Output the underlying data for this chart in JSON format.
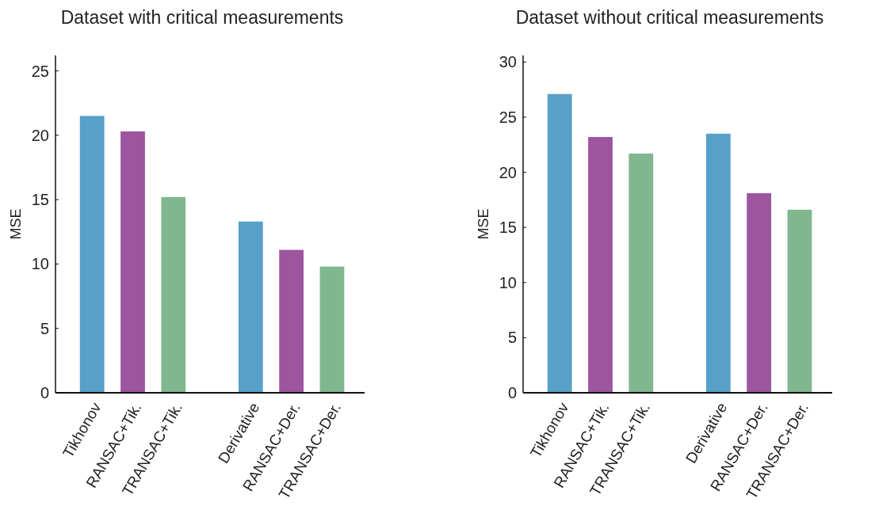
{
  "chart_data": [
    {
      "type": "bar",
      "title": "Dataset with critical measurements",
      "ylabel": "MSE",
      "categories": [
        "Tikhonov",
        "RANSAC+Tik.",
        "TRANSAC+Tik.",
        "Derivative",
        "RANSAC+Der.",
        "TRANSAC+Der."
      ],
      "values": [
        21.5,
        20.3,
        15.2,
        13.3,
        11.1,
        9.8
      ],
      "colors": [
        "#57a0c8",
        "#9d55a0",
        "#80b78e",
        "#57a0c8",
        "#9d55a0",
        "#80b78e"
      ],
      "ylim": [
        0,
        26.2
      ],
      "yticks": [
        0,
        5,
        10,
        15,
        20,
        25
      ]
    },
    {
      "type": "bar",
      "title": "Dataset without critical measurements",
      "ylabel": "MSE",
      "categories": [
        "Tikhonov",
        "RANSAC+Tik.",
        "TRANSAC+Tik.",
        "Derivative",
        "RANSAC+Der.",
        "TRANSAC+Der."
      ],
      "values": [
        27.1,
        23.2,
        21.7,
        23.5,
        18.1,
        16.6
      ],
      "colors": [
        "#57a0c8",
        "#9d55a0",
        "#80b78e",
        "#57a0c8",
        "#9d55a0",
        "#80b78e"
      ],
      "ylim": [
        0,
        30.6
      ],
      "yticks": [
        0,
        5,
        10,
        15,
        20,
        25,
        30
      ]
    }
  ]
}
